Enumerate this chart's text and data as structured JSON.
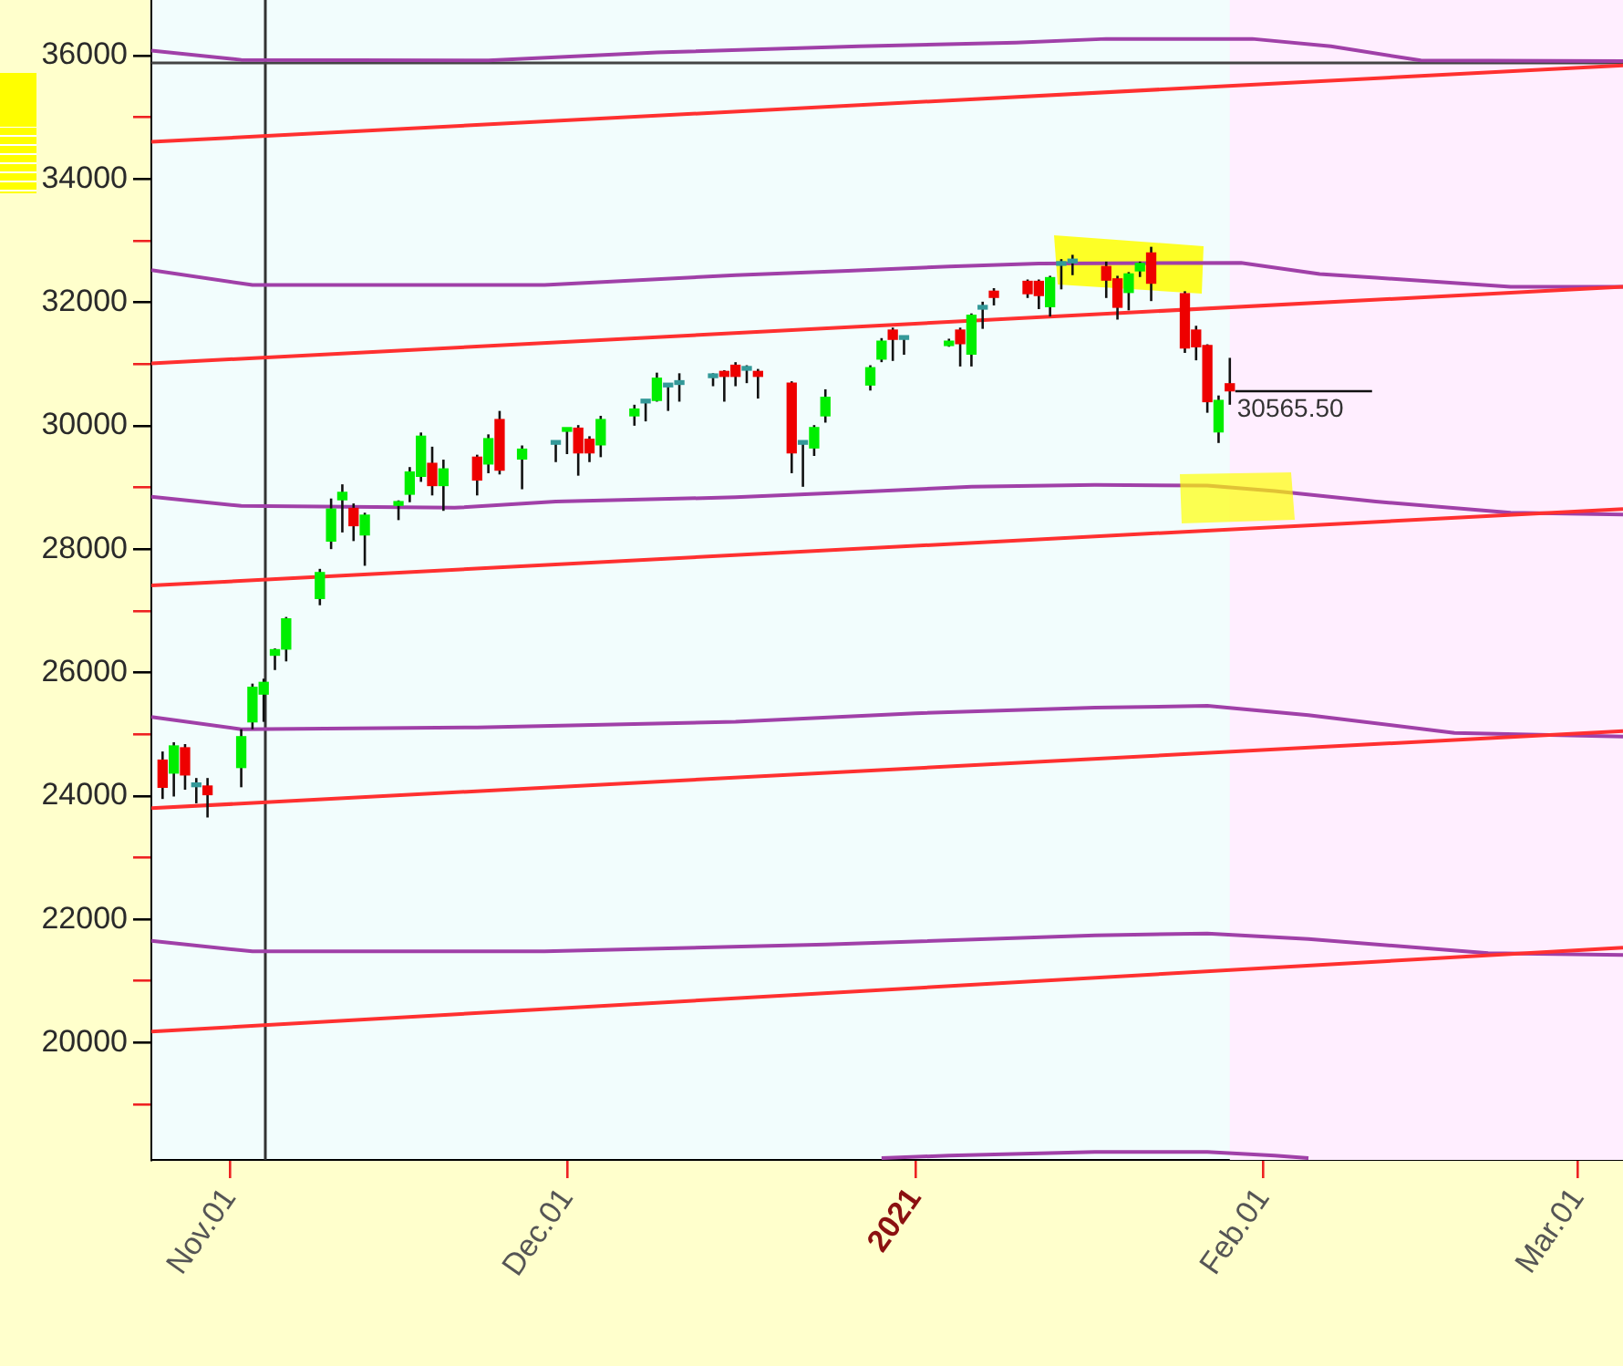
{
  "chart_data": {
    "type": "candlestick",
    "x": [
      "2020-10-26",
      "2020-10-27",
      "2020-10-28",
      "2020-10-29",
      "2020-10-30",
      "2020-11-02",
      "2020-11-03",
      "2020-11-04",
      "2020-11-05",
      "2020-11-06",
      "2020-11-09",
      "2020-11-10",
      "2020-11-11",
      "2020-11-12",
      "2020-11-13",
      "2020-11-16",
      "2020-11-17",
      "2020-11-18",
      "2020-11-19",
      "2020-11-20",
      "2020-11-23",
      "2020-11-24",
      "2020-11-25",
      "2020-11-27",
      "2020-11-30",
      "2020-12-01",
      "2020-12-02",
      "2020-12-03",
      "2020-12-04",
      "2020-12-07",
      "2020-12-08",
      "2020-12-09",
      "2020-12-10",
      "2020-12-11",
      "2020-12-14",
      "2020-12-15",
      "2020-12-16",
      "2020-12-17",
      "2020-12-18",
      "2020-12-21",
      "2020-12-22",
      "2020-12-23",
      "2020-12-24",
      "2020-12-28",
      "2020-12-29",
      "2020-12-30",
      "2020-12-31",
      "2021-01-04",
      "2021-01-05",
      "2021-01-06",
      "2021-01-07",
      "2021-01-08",
      "2021-01-11",
      "2021-01-12",
      "2021-01-13",
      "2021-01-14",
      "2021-01-15",
      "2021-01-18",
      "2021-01-19",
      "2021-01-20",
      "2021-01-21",
      "2021-01-22",
      "2021-01-25",
      "2021-01-26",
      "2021-01-27",
      "2021-01-28",
      "2021-01-29"
    ],
    "ohlc": [
      [
        24580,
        24720,
        23950,
        24140
      ],
      [
        24370,
        24870,
        23990,
        24810
      ],
      [
        24780,
        24840,
        24100,
        24340
      ],
      [
        24150,
        24290,
        23880,
        24150
      ],
      [
        24160,
        24290,
        23650,
        24020
      ],
      [
        24460,
        25080,
        24140,
        24960
      ],
      [
        25200,
        25820,
        25080,
        25760
      ],
      [
        25650,
        25900,
        25200,
        25840
      ],
      [
        26280,
        26390,
        26040,
        26370
      ],
      [
        26380,
        26900,
        26180,
        26870
      ],
      [
        27200,
        27680,
        27090,
        27620
      ],
      [
        28130,
        28820,
        28000,
        28650
      ],
      [
        28800,
        29050,
        28270,
        28920
      ],
      [
        28660,
        28740,
        28130,
        28380
      ],
      [
        28230,
        28590,
        27730,
        28550
      ],
      [
        28710,
        28790,
        28470,
        28770
      ],
      [
        28890,
        29330,
        28760,
        29250
      ],
      [
        29180,
        29890,
        29090,
        29830
      ],
      [
        29390,
        29660,
        28870,
        29030
      ],
      [
        29030,
        29450,
        28620,
        29300
      ],
      [
        29490,
        29530,
        28870,
        29120
      ],
      [
        29380,
        29860,
        29230,
        29790
      ],
      [
        30100,
        30240,
        29210,
        29280
      ],
      [
        29460,
        29680,
        28970,
        29620
      ],
      [
        29700,
        29750,
        29410,
        29700
      ],
      [
        29910,
        29930,
        29540,
        29920
      ],
      [
        29960,
        30010,
        29190,
        29560
      ],
      [
        29780,
        29830,
        29410,
        29560
      ],
      [
        29690,
        30160,
        29490,
        30100
      ],
      [
        30160,
        30340,
        30000,
        30270
      ],
      [
        30370,
        30420,
        30070,
        30370
      ],
      [
        30410,
        30860,
        30390,
        30770
      ],
      [
        30630,
        30690,
        30240,
        30630
      ],
      [
        30670,
        30850,
        30390,
        30670
      ],
      [
        30780,
        30850,
        30640,
        30780
      ],
      [
        30880,
        30900,
        30390,
        30800
      ],
      [
        30980,
        31030,
        30640,
        30800
      ],
      [
        30900,
        30980,
        30690,
        30900
      ],
      [
        30880,
        30920,
        30440,
        30800
      ],
      [
        30690,
        30720,
        29230,
        29560
      ],
      [
        29700,
        29750,
        29010,
        29700
      ],
      [
        29640,
        30010,
        29510,
        29970
      ],
      [
        30160,
        30590,
        30050,
        30460
      ],
      [
        30660,
        30980,
        30570,
        30940
      ],
      [
        31080,
        31420,
        31030,
        31370
      ],
      [
        31550,
        31590,
        31050,
        31400
      ],
      [
        31400,
        31450,
        31150,
        31400
      ],
      [
        31300,
        31410,
        31280,
        31370
      ],
      [
        31550,
        31590,
        30960,
        31330
      ],
      [
        31160,
        31820,
        30960,
        31790
      ],
      [
        31890,
        32010,
        31570,
        31890
      ],
      [
        32180,
        32230,
        31950,
        32080
      ],
      [
        32340,
        32370,
        32070,
        32140
      ],
      [
        32340,
        32370,
        31890,
        32110
      ],
      [
        31930,
        32430,
        31770,
        32400
      ],
      [
        32600,
        32700,
        32210,
        32600
      ],
      [
        32640,
        32770,
        32440,
        32640
      ],
      [
        32580,
        32660,
        32070,
        32360
      ],
      [
        32380,
        32430,
        31720,
        31920
      ],
      [
        32160,
        32490,
        31870,
        32460
      ],
      [
        32510,
        32660,
        32410,
        32630
      ],
      [
        32800,
        32900,
        32020,
        32310
      ],
      [
        32140,
        32180,
        31180,
        31260
      ],
      [
        31550,
        31620,
        31060,
        31280
      ],
      [
        31300,
        31320,
        30210,
        30390
      ],
      [
        29900,
        30490,
        29720,
        30410
      ],
      [
        30680,
        31100,
        30340,
        30565.5
      ]
    ],
    "colors": [
      "#ee0000",
      "#00ee00",
      "#ee0000",
      "#339999",
      "#ee0000",
      "#00ee00",
      "#00ee00",
      "#00ee00",
      "#00ee00",
      "#00ee00",
      "#00ee00",
      "#00ee00",
      "#00ee00",
      "#ee0000",
      "#00ee00",
      "#00ee00",
      "#00ee00",
      "#00ee00",
      "#ee0000",
      "#00ee00",
      "#ee0000",
      "#00ee00",
      "#ee0000",
      "#00ee00",
      "#339999",
      "#00ee00",
      "#ee0000",
      "#ee0000",
      "#00ee00",
      "#00ee00",
      "#339999",
      "#00ee00",
      "#339999",
      "#339999",
      "#339999",
      "#ee0000",
      "#ee0000",
      "#339999",
      "#ee0000",
      "#ee0000",
      "#339999",
      "#00ee00",
      "#00ee00",
      "#00ee00",
      "#00ee00",
      "#ee0000",
      "#339999",
      "#00ee00",
      "#ee0000",
      "#00ee00",
      "#339999",
      "#ee0000",
      "#ee0000",
      "#ee0000",
      "#00ee00",
      "#339999",
      "#339999",
      "#ee0000",
      "#ee0000",
      "#00ee00",
      "#00ee00",
      "#ee0000",
      "#ee0000",
      "#ee0000",
      "#ee0000",
      "#00ee00",
      "#ee0000"
    ],
    "series": [
      {
        "type": "line",
        "color": "#ff3030",
        "x": [
          "2020-10-25",
          "2021-03-05"
        ],
        "values": [
          34600,
          35840
        ]
      },
      {
        "type": "line",
        "color": "#ff3030",
        "x": [
          "2020-10-25",
          "2021-03-05"
        ],
        "values": [
          31010,
          32250
        ]
      },
      {
        "type": "line",
        "color": "#ff3030",
        "x": [
          "2020-10-25",
          "2021-03-05"
        ],
        "values": [
          27410,
          28650
        ]
      },
      {
        "type": "line",
        "color": "#ff3030",
        "x": [
          "2020-10-25",
          "2021-03-05"
        ],
        "values": [
          23800,
          25050
        ]
      },
      {
        "type": "line",
        "color": "#ff3030",
        "x": [
          "2020-10-25",
          "2021-03-05"
        ],
        "values": [
          20180,
          21540
        ]
      },
      {
        "type": "line",
        "color": "#a040a8",
        "x": [
          "2020-10-25",
          "2020-11-02",
          "2020-11-24",
          "2020-12-09",
          "2020-12-27",
          "2021-01-10",
          "2021-01-18",
          "2021-01-31",
          "2021-02-07",
          "2021-02-15",
          "2021-03-05"
        ],
        "values": [
          36080,
          35930,
          35920,
          36050,
          36150,
          36210,
          36270,
          36270,
          36150,
          35920,
          35910
        ]
      },
      {
        "type": "line",
        "color": "#a040a8",
        "x": [
          "2020-10-25",
          "2020-11-03",
          "2020-11-29",
          "2020-12-16",
          "2020-12-26",
          "2021-01-04",
          "2021-01-12",
          "2021-01-30",
          "2021-02-06",
          "2021-02-11",
          "2021-02-23",
          "2021-03-05"
        ],
        "values": [
          32520,
          32280,
          32280,
          32440,
          32510,
          32580,
          32630,
          32640,
          32460,
          32400,
          32250,
          32250
        ]
      },
      {
        "type": "line",
        "color": "#a040a8",
        "x": [
          "2020-10-25",
          "2020-11-02",
          "2020-11-21",
          "2020-11-30",
          "2020-12-16",
          "2020-12-26",
          "2021-01-06",
          "2021-01-17",
          "2021-01-27",
          "2021-02-02",
          "2021-02-11",
          "2021-02-23",
          "2021-03-05"
        ],
        "values": [
          28850,
          28700,
          28670,
          28770,
          28840,
          28920,
          29010,
          29040,
          29030,
          28940,
          28770,
          28590,
          28560
        ]
      },
      {
        "type": "line",
        "color": "#a040a8",
        "x": [
          "2020-10-25",
          "2020-11-02",
          "2020-11-23",
          "2020-12-16",
          "2021-01-01",
          "2021-01-17",
          "2021-01-27",
          "2021-02-05",
          "2021-02-18",
          "2021-03-05"
        ],
        "values": [
          25280,
          25080,
          25110,
          25200,
          25340,
          25430,
          25460,
          25310,
          25020,
          24960
        ]
      },
      {
        "type": "line",
        "color": "#a040a8",
        "x": [
          "2020-10-25",
          "2020-11-03",
          "2020-11-29",
          "2020-12-24",
          "2021-01-17",
          "2021-01-27",
          "2021-02-05",
          "2021-02-21",
          "2021-03-05"
        ],
        "values": [
          21650,
          21480,
          21480,
          21590,
          21740,
          21770,
          21680,
          21450,
          21420
        ]
      },
      {
        "type": "line",
        "color": "#a040a8",
        "x": [
          "2020-12-29",
          "2021-01-04",
          "2021-01-17",
          "2021-01-27",
          "2021-02-02",
          "2021-02-05"
        ],
        "values": [
          18130,
          18170,
          18230,
          18230,
          18170,
          18130
        ]
      }
    ],
    "xlim": [
      "2020-10-25",
      "2021-03-05"
    ],
    "xticks": [
      {
        "value": "2020-11-01",
        "label": "Nov.01"
      },
      {
        "value": "2020-12-01",
        "label": "Dec.01"
      },
      {
        "value": "2021-01-01",
        "label": "2021"
      },
      {
        "value": "2021-02-01",
        "label": "Feb.01"
      },
      {
        "value": "2021-03-01",
        "label": "Mar.01"
      }
    ],
    "ylim": [
      18100,
      36900
    ],
    "yticks": [
      {
        "value": 19000,
        "label": null
      },
      20000,
      {
        "value": 21000,
        "label": null
      },
      22000,
      {
        "value": 23000,
        "label": null
      },
      24000,
      {
        "value": 25000,
        "label": null
      },
      26000,
      {
        "value": 27000,
        "label": null
      },
      28000,
      {
        "value": 29000,
        "label": null
      },
      30000,
      {
        "value": 31000,
        "label": null
      },
      32000,
      {
        "value": 33000,
        "label": null
      },
      34000,
      {
        "value": 35000,
        "label": null
      },
      36000
    ],
    "ref_lines": [
      {
        "axis": "x",
        "value": "2020-11-04",
        "color": "#333333"
      },
      {
        "axis": "y",
        "value": 35900,
        "color": "#444444"
      }
    ],
    "bands": [
      {
        "axis": "x",
        "from": "2021-01-29",
        "to": "2021-03-05",
        "color": "#ffeeff"
      }
    ],
    "annotations": [
      {
        "text": "30565.50",
        "x": "2021-01-29",
        "y": 30565.5
      }
    ],
    "legend": false,
    "grid": false,
    "marker": "none"
  }
}
